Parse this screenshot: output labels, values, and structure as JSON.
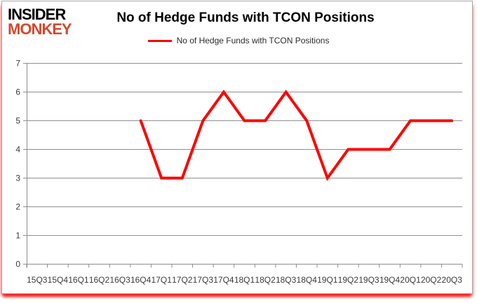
{
  "logo": {
    "line1": "INSIDER",
    "line2": "MONKEY",
    "line2_color": "#d2492e"
  },
  "title": "No of Hedge Funds with TCON Positions",
  "legend": {
    "label": "No of Hedge Funds with TCON Positions",
    "line_color": "#ff0000",
    "position": "top-center"
  },
  "chart_data": {
    "type": "line",
    "title": "No of Hedge Funds with TCON Positions",
    "xlabel": "",
    "ylabel": "",
    "categories": [
      "15Q3",
      "15Q4",
      "16Q1",
      "16Q2",
      "16Q3",
      "16Q4",
      "17Q1",
      "17Q2",
      "17Q3",
      "17Q4",
      "18Q1",
      "18Q2",
      "18Q3",
      "18Q4",
      "19Q1",
      "19Q2",
      "19Q3",
      "19Q4",
      "20Q1",
      "20Q2",
      "20Q3"
    ],
    "series": [
      {
        "name": "No of Hedge Funds with TCON Positions",
        "color": "#ff0000",
        "values": [
          null,
          null,
          null,
          null,
          null,
          5,
          3,
          3,
          5,
          6,
          5,
          5,
          6,
          5,
          3,
          4,
          4,
          4,
          5,
          5,
          5
        ]
      }
    ],
    "ylim": [
      0,
      7
    ],
    "yticks": [
      0,
      1,
      2,
      3,
      4,
      5,
      6,
      7
    ],
    "grid": true,
    "legend_position": "top",
    "axis_color": "#8e8e8e",
    "tick_label_color": "#3a3a3a",
    "line_width": 4
  }
}
